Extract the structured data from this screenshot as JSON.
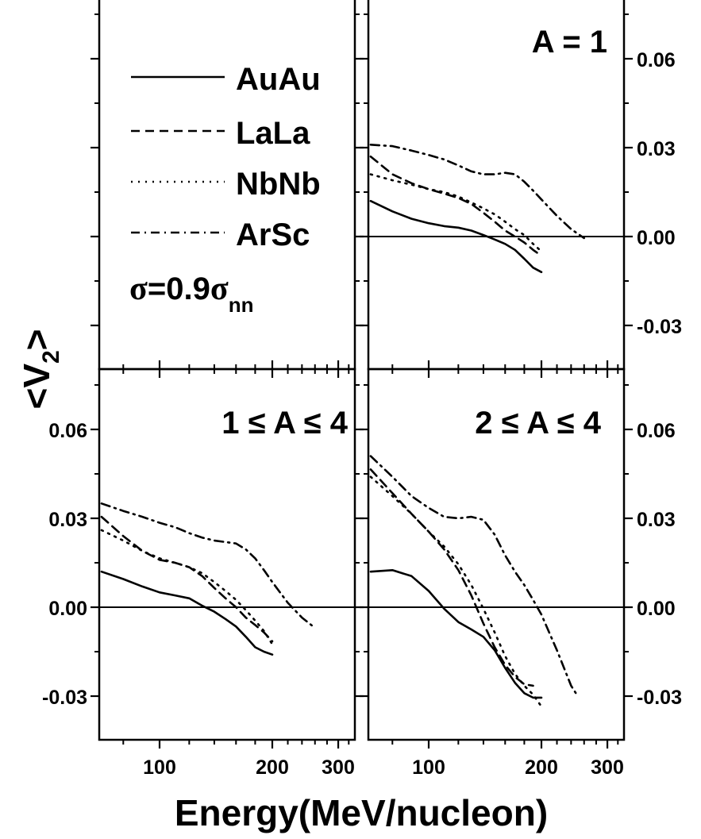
{
  "figure": {
    "xlabel": "Energy(MeV/nucleon)",
    "ylabel_main": "<V",
    "ylabel_sub": "2",
    "ylabel_end": ">",
    "legend": {
      "entries": [
        "AuAu",
        "LaLa",
        "NbNb",
        "ArSc"
      ],
      "note_sigma": "σ",
      "note_value": "=0.9",
      "note_sigma2": "σ",
      "note_sub": "nn"
    },
    "panel_labels": {
      "top_right": "A = 1",
      "bottom_left": "1 ≤ A ≤ 4",
      "bottom_right": "2 ≤ A ≤ 4"
    },
    "x_tick_labels": [
      "100",
      "200",
      "300"
    ],
    "y_tick_labels": [
      "0.06",
      "0.03",
      "0.00",
      "-0.03"
    ],
    "colors": {
      "lines": "#000000",
      "background": "#ffffff"
    }
  },
  "chart_data": [
    {
      "type": "line",
      "panel": "top-right",
      "title": "A = 1",
      "xscale": "log",
      "xlim": [
        60,
        330
      ],
      "ylim": [
        -0.046,
        0.078
      ],
      "grid": false,
      "legend": "in top-left panel",
      "series": [
        {
          "name": "AuAu",
          "dash": "solid",
          "x": [
            70,
            80,
            90,
            100,
            110,
            120,
            130,
            140,
            150,
            160,
            170,
            180,
            190,
            200
          ],
          "y": [
            0.012,
            0.0085,
            0.006,
            0.0045,
            0.0035,
            0.003,
            0.002,
            0.0005,
            -0.001,
            -0.0025,
            -0.0045,
            -0.0075,
            -0.0105,
            -0.012
          ]
        },
        {
          "name": "LaLa",
          "dash": "dashed",
          "x": [
            70,
            80,
            90,
            100,
            110,
            120,
            130,
            140,
            150,
            160,
            170,
            180,
            190,
            200
          ],
          "y": [
            0.027,
            0.021,
            0.018,
            0.016,
            0.0145,
            0.013,
            0.011,
            0.008,
            0.005,
            0.002,
            0.0,
            -0.002,
            -0.0045,
            -0.0065
          ]
        },
        {
          "name": "NbNb",
          "dash": "dotted",
          "x": [
            70,
            80,
            90,
            100,
            110,
            120,
            130,
            140,
            150,
            160,
            170,
            180,
            190,
            200
          ],
          "y": [
            0.021,
            0.019,
            0.0175,
            0.016,
            0.015,
            0.0135,
            0.0115,
            0.0095,
            0.0075,
            0.005,
            0.0025,
            0.0005,
            -0.0025,
            -0.005
          ]
        },
        {
          "name": "ArSc",
          "dash": "dashdot",
          "x": [
            70,
            80,
            90,
            100,
            110,
            120,
            130,
            140,
            150,
            160,
            170,
            180,
            190,
            200,
            220,
            240,
            260
          ],
          "y": [
            0.031,
            0.0305,
            0.029,
            0.0275,
            0.026,
            0.024,
            0.022,
            0.021,
            0.021,
            0.0215,
            0.021,
            0.0185,
            0.0155,
            0.0125,
            0.007,
            0.0025,
            -0.0005
          ]
        }
      ]
    },
    {
      "type": "line",
      "panel": "bottom-left",
      "title": "1 ≤ A ≤ 4",
      "xscale": "log",
      "xlim": [
        60,
        330
      ],
      "ylim": [
        -0.046,
        0.078
      ],
      "grid": false,
      "series": [
        {
          "name": "AuAu",
          "dash": "solid",
          "x": [
            70,
            80,
            90,
            100,
            110,
            120,
            130,
            140,
            150,
            160,
            170,
            180,
            190,
            200
          ],
          "y": [
            0.012,
            0.0095,
            0.007,
            0.005,
            0.004,
            0.003,
            0.0005,
            -0.0015,
            -0.004,
            -0.0065,
            -0.01,
            -0.0135,
            -0.015,
            -0.016
          ]
        },
        {
          "name": "LaLa",
          "dash": "dashed",
          "x": [
            70,
            80,
            90,
            100,
            110,
            120,
            130,
            140,
            150,
            160,
            170,
            180,
            190,
            200
          ],
          "y": [
            0.0305,
            0.024,
            0.019,
            0.016,
            0.015,
            0.0135,
            0.0105,
            0.0065,
            0.003,
            0.0,
            -0.0035,
            -0.006,
            -0.0085,
            -0.0115
          ]
        },
        {
          "name": "NbNb",
          "dash": "dotted",
          "x": [
            70,
            80,
            90,
            100,
            110,
            120,
            130,
            140,
            150,
            160,
            170,
            180,
            190,
            200
          ],
          "y": [
            0.026,
            0.0225,
            0.019,
            0.0165,
            0.015,
            0.0135,
            0.0115,
            0.0085,
            0.0055,
            0.0025,
            -0.001,
            -0.0045,
            -0.008,
            -0.0125
          ]
        },
        {
          "name": "ArSc",
          "dash": "dashdot",
          "x": [
            70,
            80,
            90,
            100,
            110,
            120,
            130,
            140,
            150,
            160,
            170,
            180,
            190,
            200,
            220,
            240,
            260
          ],
          "y": [
            0.035,
            0.0325,
            0.0305,
            0.0285,
            0.027,
            0.025,
            0.0235,
            0.0225,
            0.022,
            0.0215,
            0.0195,
            0.0165,
            0.0125,
            0.0085,
            0.0015,
            -0.0035,
            -0.007
          ]
        }
      ]
    },
    {
      "type": "line",
      "panel": "bottom-right",
      "title": "2 ≤ A ≤ 4",
      "xscale": "log",
      "xlim": [
        60,
        330
      ],
      "ylim": [
        -0.046,
        0.078
      ],
      "grid": false,
      "series": [
        {
          "name": "AuAu",
          "dash": "solid",
          "x": [
            70,
            80,
            90,
            100,
            110,
            120,
            130,
            140,
            150,
            160,
            170,
            180,
            190,
            200
          ],
          "y": [
            0.012,
            0.0125,
            0.0105,
            0.0055,
            -0.0005,
            -0.005,
            -0.0075,
            -0.01,
            -0.0145,
            -0.0205,
            -0.0255,
            -0.029,
            -0.0305,
            -0.0305
          ]
        },
        {
          "name": "LaLa",
          "dash": "dashed",
          "x": [
            70,
            80,
            90,
            100,
            110,
            120,
            130,
            140,
            150,
            160,
            170,
            180,
            190
          ],
          "y": [
            0.0465,
            0.0385,
            0.0315,
            0.0255,
            0.0195,
            0.0125,
            0.004,
            -0.0055,
            -0.0135,
            -0.0195,
            -0.0235,
            -0.026,
            -0.0265
          ]
        },
        {
          "name": "NbNb",
          "dash": "dotted",
          "x": [
            70,
            80,
            90,
            100,
            110,
            120,
            130,
            140,
            150,
            160,
            170,
            180,
            190,
            200
          ],
          "y": [
            0.044,
            0.0375,
            0.0315,
            0.0255,
            0.0205,
            0.0145,
            0.0075,
            -0.0005,
            -0.0085,
            -0.0165,
            -0.0225,
            -0.0265,
            -0.0295,
            -0.0335
          ]
        },
        {
          "name": "ArSc",
          "dash": "dashdot",
          "x": [
            70,
            80,
            90,
            100,
            110,
            120,
            130,
            140,
            150,
            160,
            170,
            180,
            190,
            200,
            220,
            240,
            250
          ],
          "y": [
            0.051,
            0.044,
            0.0375,
            0.0335,
            0.0305,
            0.03,
            0.0305,
            0.0295,
            0.0245,
            0.0175,
            0.012,
            0.0075,
            0.0025,
            -0.0025,
            -0.0145,
            -0.0265,
            -0.03
          ]
        }
      ]
    }
  ]
}
